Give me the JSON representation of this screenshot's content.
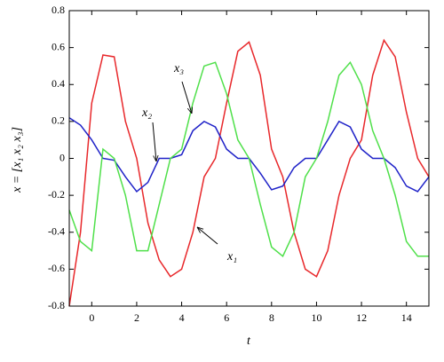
{
  "chart_data": {
    "type": "line",
    "y_label": "x = [x₁ x₂ x₃]",
    "x_label": "t",
    "annotations": [
      "x₁",
      "x₂",
      "x₃"
    ],
    "x": [
      -1,
      -0.5,
      0,
      0.5,
      1,
      1.5,
      2,
      2.5,
      3,
      3.5,
      4,
      4.5,
      5,
      5.5,
      6,
      6.5,
      7,
      7.5,
      8,
      8.5,
      9,
      9.5,
      10,
      10.5,
      11,
      11.5,
      12,
      12.5,
      13,
      13.5,
      14,
      14.5,
      15
    ],
    "series": [
      {
        "name": "x₁",
        "color": "#e8282b",
        "values": [
          -0.8,
          -0.4,
          0.3,
          0.56,
          0.55,
          0.2,
          0.0,
          -0.35,
          -0.55,
          -0.64,
          -0.6,
          -0.4,
          -0.1,
          0.0,
          0.3,
          0.58,
          0.63,
          0.45,
          0.05,
          -0.1,
          -0.4,
          -0.6,
          -0.64,
          -0.5,
          -0.2,
          0.0,
          0.1,
          0.45,
          0.64,
          0.55,
          0.25,
          0.0,
          -0.1
        ]
      },
      {
        "name": "x₂",
        "color": "#1f22c8",
        "values": [
          0.22,
          0.18,
          0.1,
          0.0,
          -0.01,
          -0.1,
          -0.18,
          -0.13,
          0.0,
          0.0,
          0.02,
          0.15,
          0.2,
          0.17,
          0.05,
          0.0,
          0.0,
          -0.08,
          -0.17,
          -0.15,
          -0.05,
          0.0,
          0.0,
          0.1,
          0.2,
          0.17,
          0.05,
          0.0,
          0.0,
          -0.05,
          -0.15,
          -0.18,
          -0.1
        ]
      },
      {
        "name": "x₃",
        "color": "#4fe04a",
        "values": [
          -0.28,
          -0.45,
          -0.5,
          0.05,
          0.0,
          -0.2,
          -0.5,
          -0.5,
          -0.25,
          0.0,
          0.05,
          0.3,
          0.5,
          0.52,
          0.35,
          0.1,
          0.0,
          -0.25,
          -0.48,
          -0.53,
          -0.4,
          -0.1,
          0.0,
          0.2,
          0.45,
          0.52,
          0.4,
          0.15,
          0.0,
          -0.2,
          -0.45,
          -0.53,
          -0.53
        ]
      }
    ],
    "xlim": [
      -1,
      15
    ],
    "xticks": [
      0,
      2,
      4,
      6,
      8,
      10,
      12,
      14
    ],
    "ylim": [
      -0.8,
      0.8
    ],
    "yticks": [
      -0.8,
      -0.6,
      -0.4,
      -0.2,
      0,
      0.2,
      0.4,
      0.6,
      0.8
    ]
  }
}
